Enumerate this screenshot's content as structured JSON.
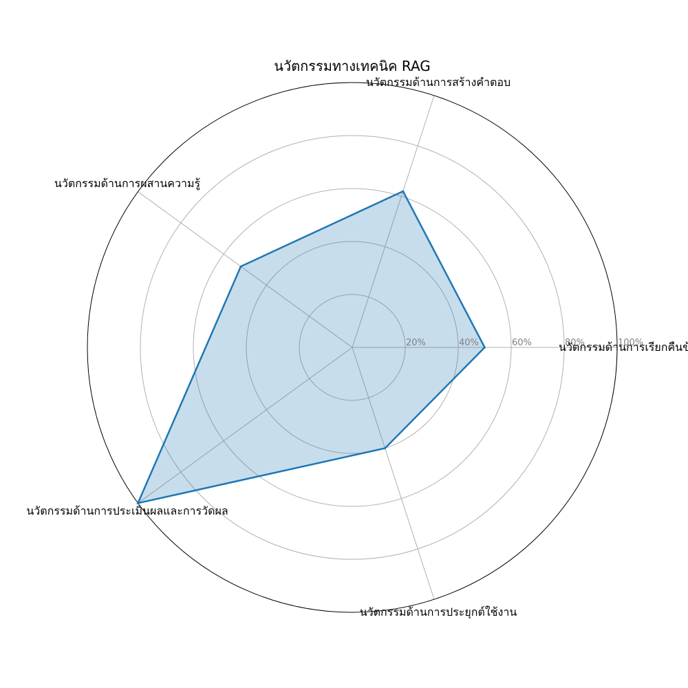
{
  "chart_data": {
    "type": "radar",
    "title": "นวัตกรรมทางเทคนิค RAG",
    "categories": [
      "นวัตกรรมด้านการเรียกคืนข้อมูล",
      "นวัตกรรมด้านการสร้างคำตอบ",
      "นวัตกรรมด้านการผสานความรู้",
      "นวัตกรรมด้านการประเมินผลและการวัดผล",
      "นวัตกรรมด้านการประยุกต์ใช้งาน"
    ],
    "series": [
      {
        "values": [
          50,
          62,
          52,
          100,
          40
        ]
      }
    ],
    "r_ticks": [
      20,
      40,
      60,
      80,
      100
    ],
    "r_tick_labels": [
      "20%",
      "40%",
      "60%",
      "80%",
      "100%"
    ],
    "rlim": [
      0,
      100
    ],
    "grid": true,
    "colors": {
      "line": "#1f77b4",
      "fill": "#1f77b4",
      "grid": "#b0b0b0",
      "frame": "#000000",
      "tick": "#7f7f7f"
    }
  }
}
